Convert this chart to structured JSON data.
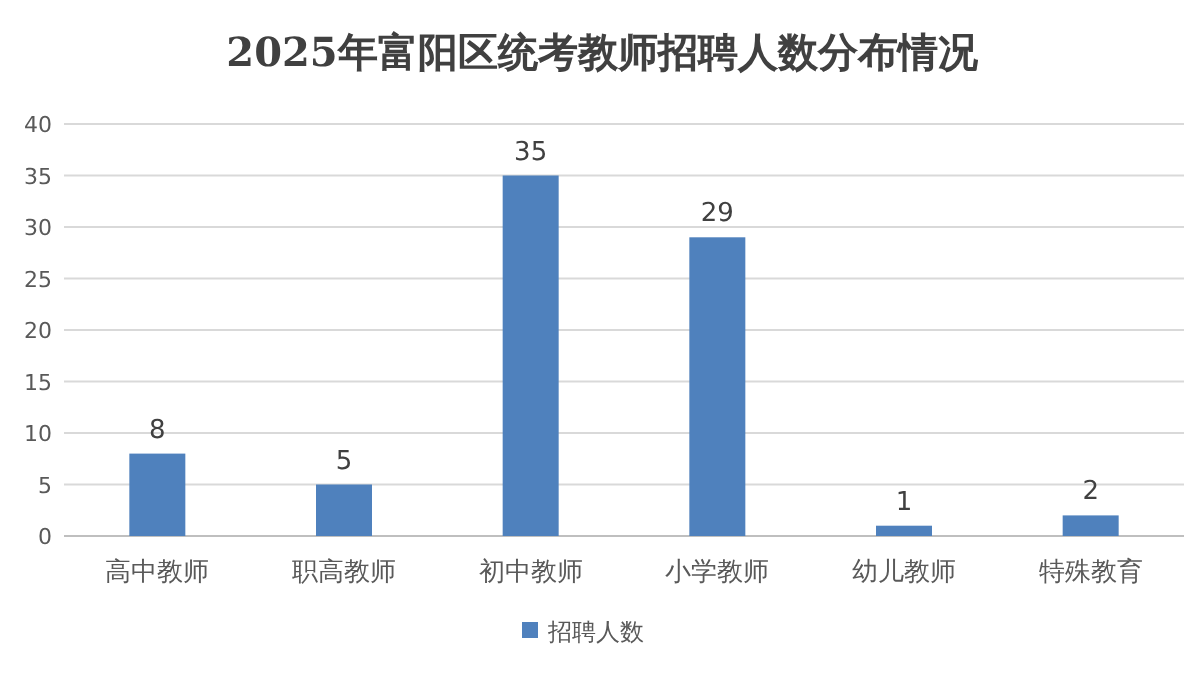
{
  "chart_data": {
    "type": "bar",
    "title": "2025年富阳区统考教师招聘人数分布情况",
    "categories": [
      "高中教师",
      "职高教师",
      "初中教师",
      "小学教师",
      "幼儿教师",
      "特殊教育"
    ],
    "series": [
      {
        "name": "招聘人数",
        "color": "#4f81bd",
        "values": [
          8,
          5,
          35,
          29,
          1,
          2
        ]
      }
    ],
    "ylim": [
      0,
      40
    ],
    "yticks": [
      0,
      5,
      10,
      15,
      20,
      25,
      30,
      35,
      40
    ],
    "grid": "y",
    "legend": "bottom",
    "data_labels": true
  }
}
